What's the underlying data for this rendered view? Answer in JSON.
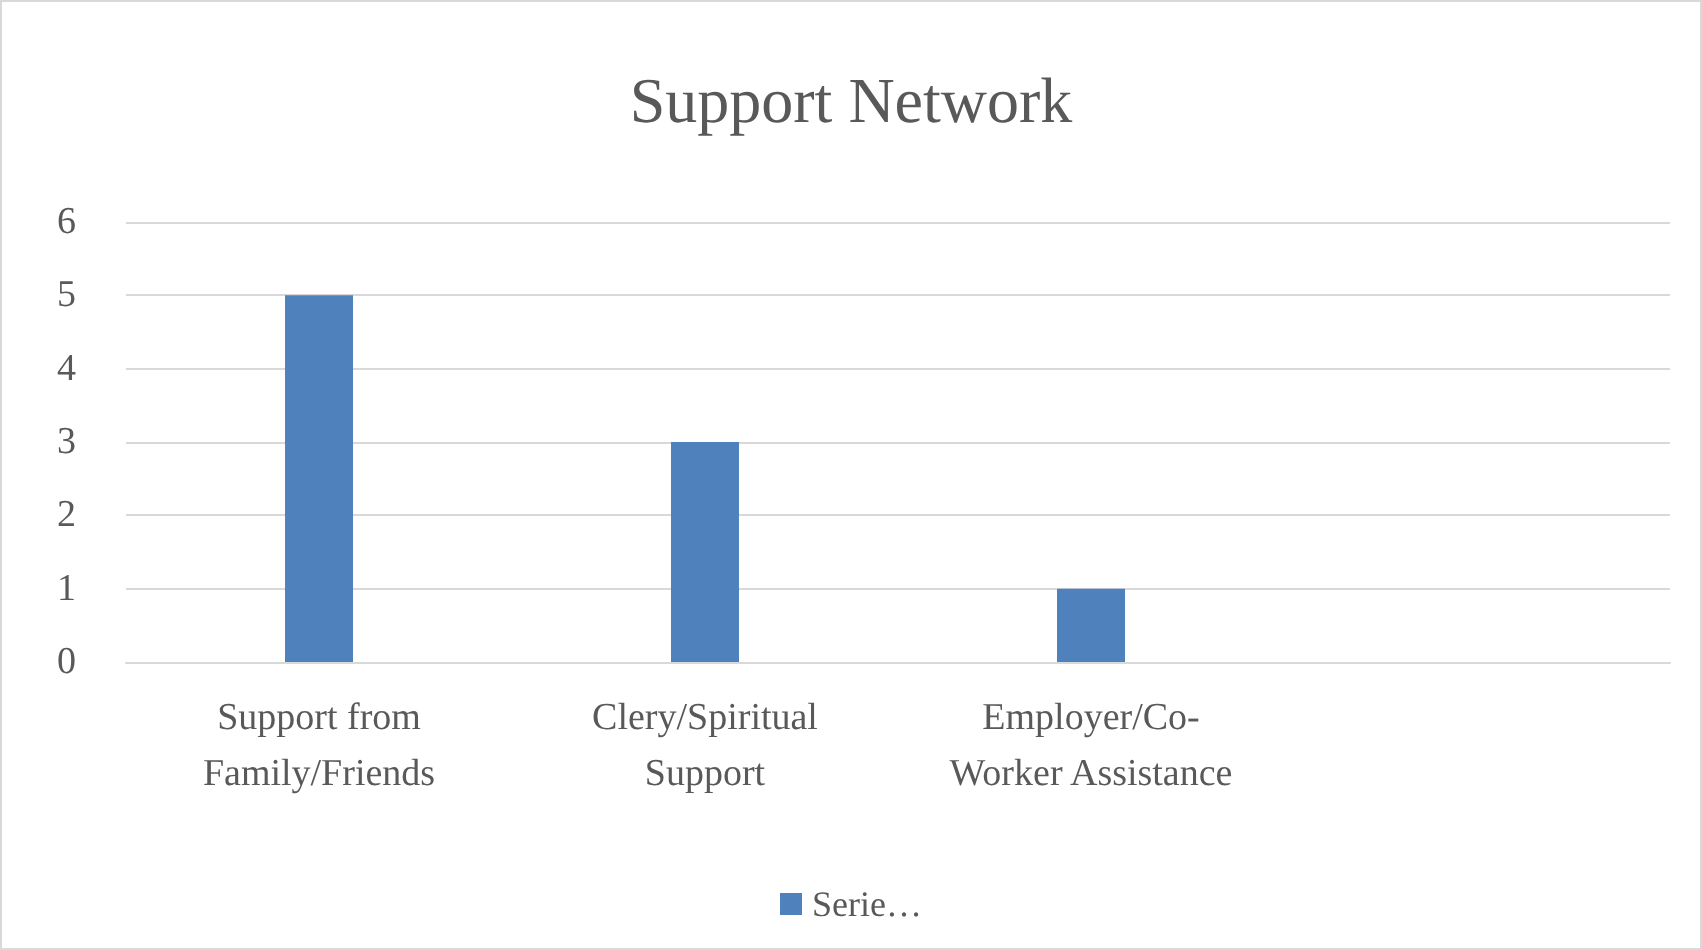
{
  "chart_data": {
    "type": "bar",
    "title": "Support Network",
    "categories": [
      "Support from\nFamily/Friends",
      "Clery/Spiritual\nSupport",
      "Employer/Co-\nWorker Assistance",
      null
    ],
    "series": [
      {
        "name": "Serie…",
        "color": "#4f81bd",
        "values": [
          5,
          3,
          1,
          null
        ]
      }
    ],
    "ylim": [
      0,
      6
    ],
    "yticks": [
      0,
      1,
      2,
      3,
      4,
      5,
      6
    ],
    "grid": "y",
    "legend": "bottom"
  }
}
